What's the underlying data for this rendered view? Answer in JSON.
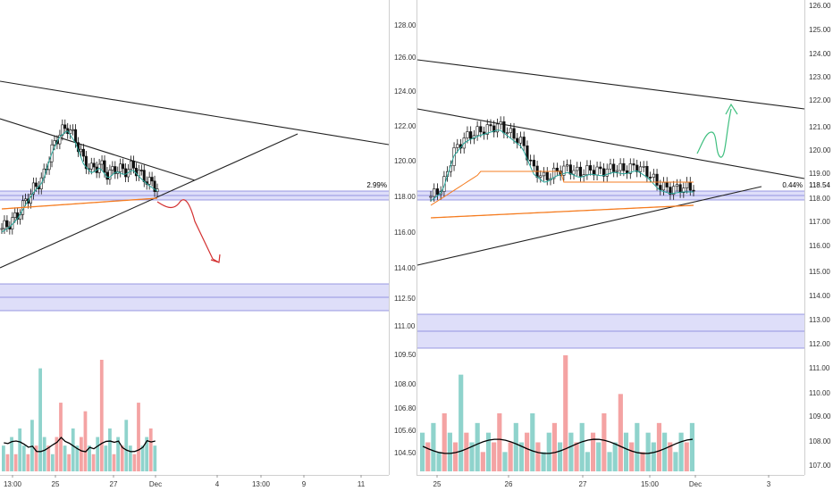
{
  "colors": {
    "up": "#26a69a",
    "down": "#ef5350",
    "candle_body": "#111111",
    "zone_fill": "#d6d6f7",
    "zone_line": "#7b7bd9",
    "trend_line": "#222222",
    "ma_fast": "#26a69a",
    "ma_slow": "#f57c20",
    "arrow_down": "#d32f2f",
    "arrow_up": "#3fbf7f",
    "vol_up": "#8fd3cc",
    "vol_down": "#f4a3a3"
  },
  "chart_data": [
    {
      "type": "candlestick",
      "name": "left-panel",
      "y_axis": {
        "side": "right",
        "ticks": [
          "128.00",
          "126.00",
          "124.00",
          "122.00",
          "120.00",
          "118.00",
          "116.00",
          "114.00",
          "112.50",
          "111.00",
          "109.50",
          "108.00",
          "106.80",
          "105.60",
          "104.50"
        ],
        "last_price_badge": "2.99%"
      },
      "x_axis": {
        "ticks": [
          "13:00",
          "25",
          "27",
          "Dec",
          "4",
          "13:00",
          "9",
          "11"
        ]
      },
      "support_zone": [
        117.8,
        118.3
      ],
      "lower_zone": [
        112.0,
        113.6
      ],
      "price_path": [
        116.2,
        116.5,
        117.0,
        117.8,
        118.5,
        119.0,
        120.5,
        121.5,
        121.9,
        121.2,
        120.0,
        119.5,
        119.8,
        119.2,
        119.6,
        119.4,
        119.7,
        119.2,
        118.8,
        118.5
      ],
      "projection": "down",
      "volume": {
        "values": [
          3,
          2,
          4,
          2,
          5,
          3,
          2,
          6,
          3,
          12,
          4,
          3,
          2,
          4,
          8,
          3,
          2,
          5,
          3,
          4,
          7,
          3,
          2,
          4,
          13,
          3,
          5,
          2,
          4,
          3,
          6,
          3,
          2,
          8,
          3,
          4,
          5,
          3
        ],
        "up": [
          1,
          0,
          1,
          0,
          1,
          1,
          0,
          1,
          0,
          1,
          1,
          0,
          1,
          0,
          0,
          1,
          0,
          1,
          1,
          0,
          0,
          1,
          0,
          1,
          0,
          1,
          1,
          0,
          1,
          0,
          1,
          1,
          0,
          0,
          1,
          1,
          0,
          1
        ]
      }
    },
    {
      "type": "candlestick",
      "name": "right-panel",
      "y_axis": {
        "side": "right",
        "ticks": [
          "126.00",
          "125.00",
          "124.00",
          "123.00",
          "122.00",
          "121.00",
          "120.00",
          "119.00",
          "118.00",
          "117.00",
          "116.00",
          "115.00",
          "114.00",
          "113.00",
          "112.00",
          "111.00",
          "110.00",
          "109.00",
          "108.00",
          "107.00"
        ],
        "last_price": "118.54",
        "last_price_badge": "0.44%"
      },
      "x_axis": {
        "ticks": [
          "25",
          "26",
          "27",
          "15:00",
          "Dec",
          "3"
        ]
      },
      "support_zone": [
        117.8,
        118.3
      ],
      "lower_zone": [
        111.8,
        113.2
      ],
      "price_path": [
        118.0,
        118.5,
        120.5,
        121.3,
        121.6,
        121.8,
        122.0,
        121.5,
        121.0,
        119.5,
        119.0,
        119.4,
        119.6,
        119.3,
        119.5,
        119.4,
        119.6,
        119.5,
        119.7,
        119.3,
        118.6,
        118.4,
        118.5,
        118.5
      ],
      "projection": "up",
      "volume": {
        "values": [
          4,
          3,
          5,
          2,
          6,
          4,
          3,
          10,
          4,
          3,
          5,
          2,
          4,
          3,
          6,
          2,
          3,
          5,
          3,
          4,
          6,
          3,
          2,
          4,
          5,
          3,
          12,
          4,
          3,
          5,
          2,
          4,
          3,
          6,
          2,
          3,
          8,
          4,
          3,
          5,
          2,
          4,
          3,
          5,
          4,
          3,
          2,
          4,
          3,
          5
        ],
        "up": [
          1,
          0,
          1,
          1,
          0,
          1,
          0,
          1,
          0,
          1,
          1,
          0,
          1,
          0,
          0,
          1,
          0,
          1,
          1,
          0,
          1,
          0,
          1,
          1,
          0,
          1,
          0,
          1,
          0,
          1,
          1,
          0,
          1,
          0,
          1,
          1,
          0,
          1,
          0,
          1,
          0,
          1,
          1,
          0,
          1,
          0,
          1,
          1,
          0,
          1
        ]
      }
    }
  ]
}
